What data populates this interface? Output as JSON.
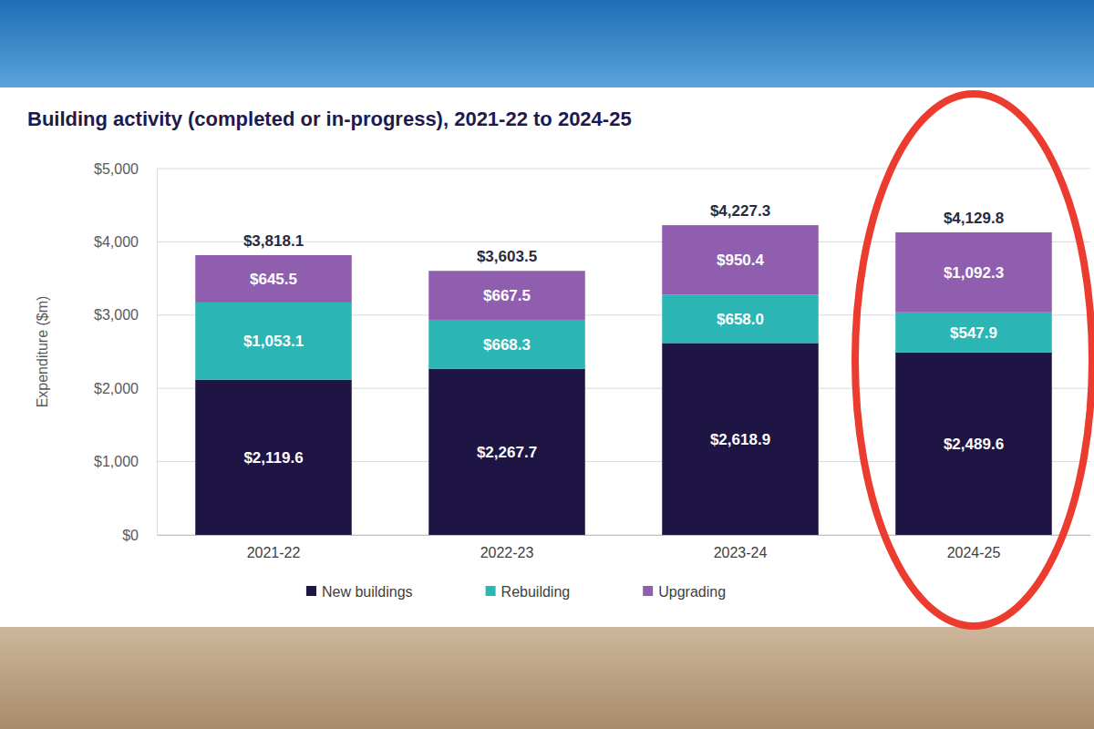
{
  "chart_data": {
    "type": "bar",
    "title": "Building activity (completed or in-progress), 2021-22 to 2024-25",
    "y_label": "Expenditure ($m)",
    "categories": [
      "2021-22",
      "2022-23",
      "2023-24",
      "2024-25"
    ],
    "series": [
      {
        "name": "New buildings",
        "color": "#1e1545",
        "values": [
          2119.6,
          2267.7,
          2618.9,
          2489.6
        ],
        "value_labels": [
          "$2,119.6",
          "$2,267.7",
          "$2,618.9",
          "$2,489.6"
        ]
      },
      {
        "name": "Rebuilding",
        "color": "#2bb5b5",
        "values": [
          1053.1,
          668.3,
          658.0,
          547.9
        ],
        "value_labels": [
          "$1,053.1",
          "$668.3",
          "$658.0",
          "$547.9"
        ]
      },
      {
        "name": "Upgrading",
        "color": "#8f5eaf",
        "values": [
          645.5,
          667.5,
          950.4,
          1092.3
        ],
        "value_labels": [
          "$645.5",
          "$667.5",
          "$950.4",
          "$1,092.3"
        ]
      }
    ],
    "totals": [
      3818.1,
      3603.5,
      4227.3,
      4129.8
    ],
    "totals_labels": [
      "$3,818.1",
      "$3,603.5",
      "$4,227.3",
      "$4,129.8"
    ],
    "ylim": [
      0,
      5000
    ],
    "yticks": [
      {
        "value": 0,
        "label": "$0"
      },
      {
        "value": 1000,
        "label": "$1,000"
      },
      {
        "value": 2000,
        "label": "$2,000"
      },
      {
        "value": 3000,
        "label": "$3,000"
      },
      {
        "value": 4000,
        "label": "$4,000"
      },
      {
        "value": 5000,
        "label": "$5,000"
      }
    ],
    "stacked": true,
    "data_labels": true,
    "grid": true,
    "legend": "bottom"
  }
}
